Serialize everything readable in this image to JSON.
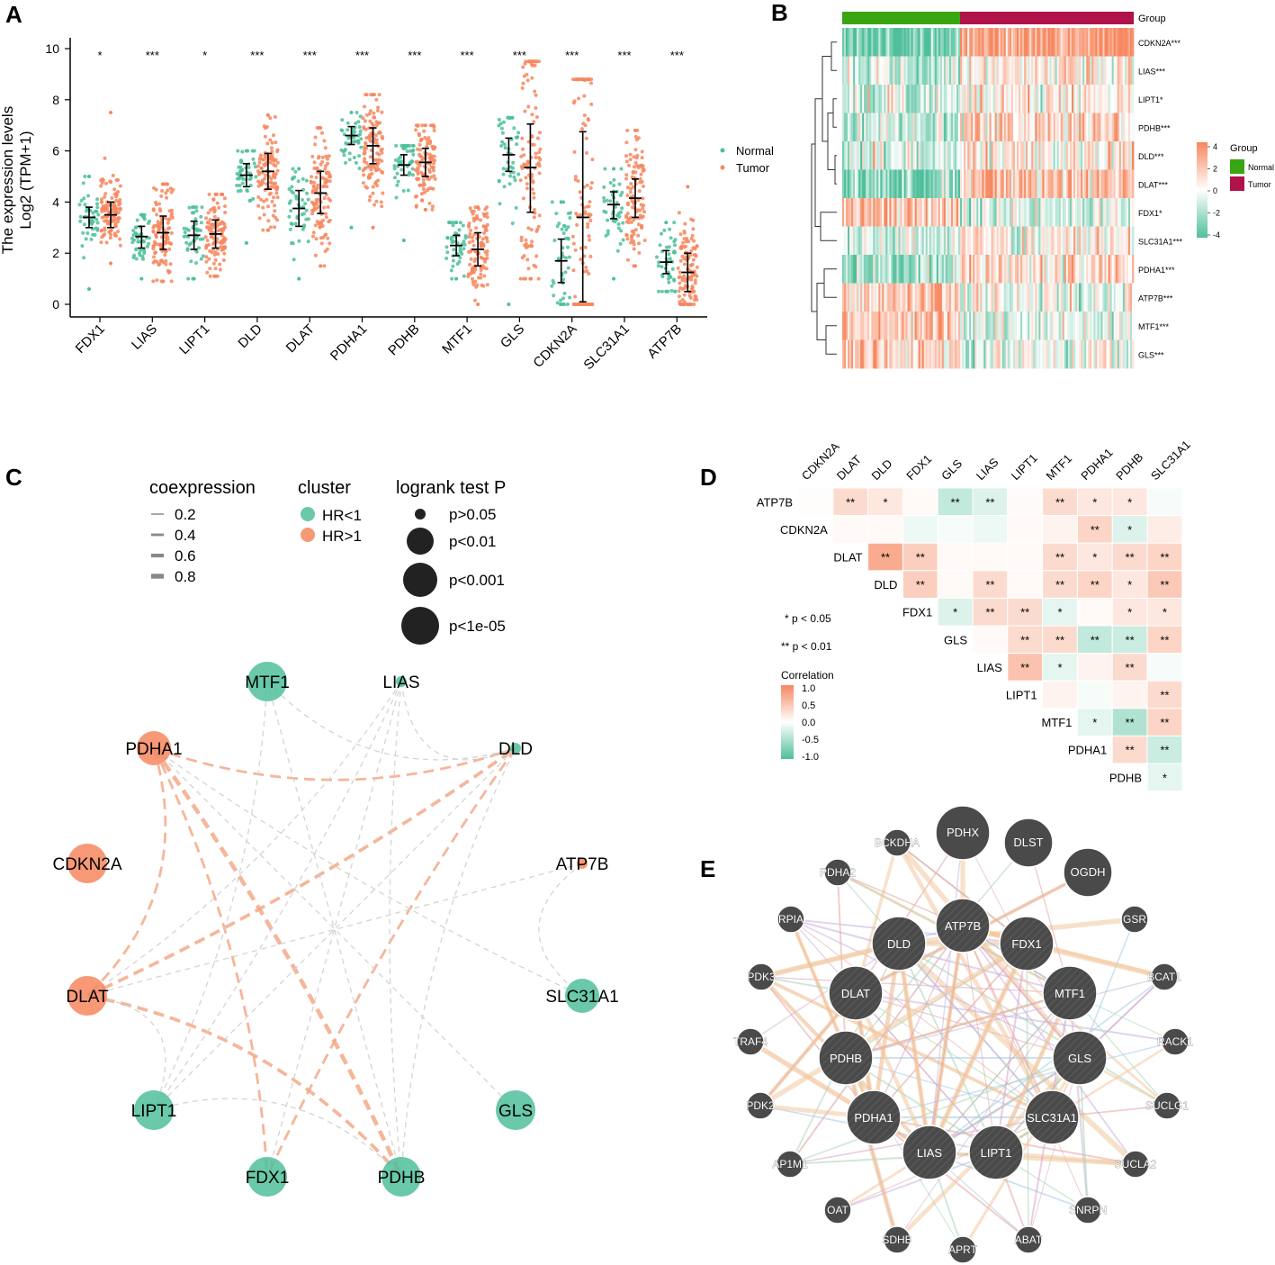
{
  "colors": {
    "normal": "#4fbf9b",
    "tumor": "#f6875f",
    "normal_bar": "#3aa513",
    "tumor_bar": "#b0124a",
    "node_dark": "#4a4a4a"
  },
  "chart_data": [
    {
      "panel": "A",
      "type": "scatter",
      "ylabel_main": "The expression levels",
      "ylabel_sub": "Log2 (TPM+1)",
      "ylim": [
        0,
        10
      ],
      "yticks": [
        "0",
        "2",
        "4",
        "6",
        "8",
        "10"
      ],
      "legend": [
        "Normal",
        "Tumor"
      ],
      "categories": [
        "FDX1",
        "LIAS",
        "LIPT1",
        "DLD",
        "DLAT",
        "PDHA1",
        "PDHB",
        "MTF1",
        "GLS",
        "CDKN2A",
        "SLC31A1",
        "ATP7B"
      ],
      "significance": [
        "*",
        "***",
        "*",
        "***",
        "***",
        "***",
        "***",
        "***",
        "***",
        "***",
        "***",
        "***"
      ],
      "series": [
        {
          "name": "Normal",
          "median": [
            3.4,
            2.65,
            2.7,
            5.05,
            3.75,
            6.6,
            5.45,
            2.3,
            5.85,
            1.7,
            3.9,
            1.65
          ],
          "q1": [
            3.0,
            2.2,
            2.15,
            4.6,
            3.05,
            6.25,
            5.05,
            1.9,
            5.2,
            0.85,
            3.35,
            1.2
          ],
          "q3": [
            3.8,
            3.05,
            3.25,
            5.5,
            4.45,
            6.95,
            5.85,
            2.7,
            6.5,
            2.55,
            4.4,
            2.1
          ],
          "min": [
            0.6,
            1.0,
            1.0,
            2.4,
            1.0,
            3.0,
            2.5,
            1.0,
            0.0,
            0.0,
            1.0,
            0.5
          ],
          "max": [
            5.0,
            3.5,
            3.8,
            6.0,
            5.3,
            7.5,
            6.2,
            3.2,
            7.3,
            4.0,
            5.3,
            3.2
          ]
        },
        {
          "name": "Tumor",
          "median": [
            3.5,
            2.8,
            2.75,
            5.2,
            4.35,
            6.2,
            5.55,
            2.15,
            5.35,
            3.4,
            4.15,
            1.25
          ],
          "q1": [
            3.0,
            2.15,
            2.2,
            4.5,
            3.55,
            5.5,
            5.0,
            1.5,
            3.6,
            0.1,
            3.4,
            0.5
          ],
          "q3": [
            4.0,
            3.45,
            3.3,
            5.9,
            5.2,
            6.9,
            6.1,
            2.8,
            7.05,
            6.75,
            4.9,
            2.0
          ],
          "min": [
            1.6,
            0.9,
            1.1,
            2.9,
            1.5,
            3.0,
            3.7,
            0.0,
            1.0,
            0.0,
            1.5,
            0.0
          ],
          "max": [
            7.5,
            4.7,
            4.3,
            7.4,
            6.9,
            8.2,
            7.0,
            3.8,
            9.5,
            8.8,
            6.8,
            4.6
          ]
        }
      ]
    },
    {
      "panel": "B",
      "type": "heatmap",
      "rows": [
        "CDKN2A***",
        "LIAS***",
        "LIPT1*",
        "PDHB***",
        "DLD***",
        "DLAT***",
        "FDX1*",
        "SLC31A1***",
        "PDHA1***",
        "ATP7B***",
        "MTF1***",
        "GLS***"
      ],
      "group_label": "Group",
      "groups": [
        "Normal",
        "Tumor"
      ],
      "colorbar": {
        "title": "Group",
        "ticks": [
          "4",
          "2",
          "0",
          "-2",
          "-4"
        ],
        "range": [
          -4,
          4
        ]
      },
      "normal_bias": [
        -0.9,
        -0.2,
        -0.2,
        -0.3,
        -0.2,
        -0.7,
        0.5,
        -0.2,
        -0.6,
        0.4,
        0.4,
        0.4
      ],
      "tumor_bias": [
        0.8,
        0.2,
        0.2,
        0.3,
        0.2,
        0.5,
        -0.2,
        0.1,
        0.3,
        -0.1,
        -0.2,
        -0.1
      ]
    },
    {
      "panel": "C",
      "type": "network",
      "legend_titles": {
        "coexpression": "coexpression",
        "cluster": "cluster",
        "logrank": "logrank test P"
      },
      "coexpression_values": [
        "0.2",
        "0.4",
        "0.6",
        "0.8"
      ],
      "cluster": [
        {
          "label": "HR<1",
          "color": "#4fbf9b"
        },
        {
          "label": "HR>1",
          "color": "#f6875f"
        }
      ],
      "logrank": [
        "p>0.05",
        "p<0.01",
        "p<0.001",
        "p<1e-05"
      ],
      "nodes": [
        {
          "name": "MTF1",
          "cluster": "HR<1",
          "p": "p<0.001"
        },
        {
          "name": "LIAS",
          "cluster": "HR<1",
          "p": "p>0.05"
        },
        {
          "name": "DLD",
          "cluster": "HR<1",
          "p": "p>0.05"
        },
        {
          "name": "ATP7B",
          "cluster": "HR>1",
          "p": "p>0.05"
        },
        {
          "name": "SLC31A1",
          "cluster": "HR<1",
          "p": "p<0.01"
        },
        {
          "name": "GLS",
          "cluster": "HR<1",
          "p": "p<0.001"
        },
        {
          "name": "PDHB",
          "cluster": "HR<1",
          "p": "p<0.001"
        },
        {
          "name": "FDX1",
          "cluster": "HR<1",
          "p": "p<0.001"
        },
        {
          "name": "LIPT1",
          "cluster": "HR<1",
          "p": "p<0.001"
        },
        {
          "name": "DLAT",
          "cluster": "HR>1",
          "p": "p<0.001"
        },
        {
          "name": "CDKN2A",
          "cluster": "HR>1",
          "p": "p<0.001"
        },
        {
          "name": "PDHA1",
          "cluster": "HR>1",
          "p": "p<0.01"
        }
      ],
      "edges": [
        [
          "PDHA1",
          "PDHB",
          0.8,
          "pos"
        ],
        [
          "DLAT",
          "PDHB",
          0.6,
          "pos"
        ],
        [
          "PDHA1",
          "DLD",
          0.4,
          "pos"
        ],
        [
          "DLAT",
          "DLD",
          0.6,
          "pos"
        ],
        [
          "PDHA1",
          "DLAT",
          0.4,
          "pos"
        ],
        [
          "DLD",
          "FDX1",
          0.4,
          "pos"
        ],
        [
          "PDHA1",
          "FDX1",
          0.4,
          "pos"
        ],
        [
          "DLAT",
          "LIPT1",
          0.2,
          "neg"
        ],
        [
          "MTF1",
          "PDHB",
          0.2,
          "neg"
        ],
        [
          "MTF1",
          "DLD",
          0.2,
          "neg"
        ],
        [
          "LIAS",
          "LIPT1",
          0.2,
          "neg"
        ],
        [
          "LIAS",
          "PDHB",
          0.2,
          "neg"
        ],
        [
          "LIAS",
          "FDX1",
          0.2,
          "neg"
        ],
        [
          "LIAS",
          "DLAT",
          0.2,
          "neg"
        ],
        [
          "LIAS",
          "DLD",
          0.2,
          "neg"
        ],
        [
          "ATP7B",
          "SLC31A1",
          0.2,
          "neg"
        ],
        [
          "ATP7B",
          "DLAT",
          0.2,
          "neg"
        ],
        [
          "PDHA1",
          "SLC31A1",
          0.2,
          "neg"
        ],
        [
          "GLS",
          "PDHA1",
          0.2,
          "neg"
        ],
        [
          "LIPT1",
          "PDHB",
          0.2,
          "neg"
        ],
        [
          "LIPT1",
          "DLD",
          0.2,
          "neg"
        ],
        [
          "MTF1",
          "LIPT1",
          0.2,
          "neg"
        ],
        [
          "PDHB",
          "DLD",
          0.2,
          "neg"
        ]
      ]
    },
    {
      "panel": "D",
      "type": "heatmap",
      "columns": [
        "CDKN2A",
        "DLAT",
        "DLD",
        "FDX1",
        "GLS",
        "LIAS",
        "LIPT1",
        "MTF1",
        "PDHA1",
        "PDHB",
        "SLC31A1"
      ],
      "rows": [
        "ATP7B",
        "CDKN2A",
        "DLAT",
        "DLD",
        "FDX1",
        "GLS",
        "LIAS",
        "LIPT1",
        "MTF1",
        "PDHA1",
        "PDHB"
      ],
      "values": [
        [
          0.02,
          0.3,
          0.2,
          0.05,
          -0.35,
          -0.2,
          0.03,
          0.3,
          0.2,
          0.2,
          -0.05
        ],
        [
          null,
          0.05,
          0.05,
          -0.1,
          -0.05,
          -0.1,
          0.05,
          0.1,
          0.35,
          -0.2,
          0.15
        ],
        [
          null,
          null,
          0.7,
          0.4,
          0.05,
          0.05,
          0.05,
          0.3,
          0.2,
          0.3,
          0.35
        ],
        [
          null,
          null,
          null,
          0.4,
          0.05,
          0.3,
          0.05,
          0.3,
          0.35,
          0.2,
          0.45
        ],
        [
          null,
          null,
          null,
          null,
          -0.2,
          0.3,
          0.3,
          -0.15,
          0.05,
          0.2,
          0.2
        ],
        [
          null,
          null,
          null,
          null,
          null,
          0.05,
          0.3,
          0.3,
          -0.35,
          -0.3,
          0.35
        ],
        [
          null,
          null,
          null,
          null,
          null,
          null,
          0.5,
          -0.15,
          0.1,
          0.3,
          -0.05
        ],
        [
          null,
          null,
          null,
          null,
          null,
          null,
          null,
          0.1,
          -0.05,
          0.1,
          0.3
        ],
        [
          null,
          null,
          null,
          null,
          null,
          null,
          null,
          null,
          -0.15,
          -0.45,
          0.35
        ],
        [
          null,
          null,
          null,
          null,
          null,
          null,
          null,
          null,
          null,
          0.3,
          -0.3
        ],
        [
          null,
          null,
          null,
          null,
          null,
          null,
          null,
          null,
          null,
          null,
          -0.15
        ]
      ],
      "stars": [
        [
          "",
          "**",
          "*",
          "",
          "**",
          "**",
          "",
          "**",
          "*",
          "*",
          ""
        ],
        [
          null,
          "",
          "",
          "",
          "",
          "",
          "",
          "",
          "**",
          "*",
          ""
        ],
        [
          null,
          null,
          "**",
          "**",
          "",
          "",
          "",
          "**",
          "*",
          "**",
          "**"
        ],
        [
          null,
          null,
          null,
          "**",
          "",
          "**",
          "",
          "**",
          "**",
          "*",
          "**"
        ],
        [
          null,
          null,
          null,
          null,
          "*",
          "**",
          "**",
          "*",
          "",
          "*",
          "*"
        ],
        [
          null,
          null,
          null,
          null,
          null,
          "",
          "**",
          "**",
          "**",
          "**",
          "**"
        ],
        [
          null,
          null,
          null,
          null,
          null,
          null,
          "**",
          "*",
          "",
          "**",
          ""
        ],
        [
          null,
          null,
          null,
          null,
          null,
          null,
          null,
          "",
          "",
          "",
          "**"
        ],
        [
          null,
          null,
          null,
          null,
          null,
          null,
          null,
          null,
          "*",
          "**",
          "**"
        ],
        [
          null,
          null,
          null,
          null,
          null,
          null,
          null,
          null,
          null,
          "**",
          "**"
        ],
        [
          null,
          null,
          null,
          null,
          null,
          null,
          null,
          null,
          null,
          null,
          "*"
        ]
      ],
      "sig_legend": [
        "* p < 0.05",
        "** p < 0.01"
      ],
      "colorbar": {
        "title": "Correlation",
        "ticks": [
          "1.0",
          "0.5",
          "0.0",
          "-0.5",
          "-1.0"
        ],
        "range": [
          -1,
          1
        ]
      }
    },
    {
      "panel": "E",
      "type": "network",
      "inner_nodes": [
        {
          "name": "ATP7B",
          "size": "large"
        },
        {
          "name": "FDX1",
          "size": "large"
        },
        {
          "name": "MTF1",
          "size": "large"
        },
        {
          "name": "GLS",
          "size": "large"
        },
        {
          "name": "SLC31A1",
          "size": "large"
        },
        {
          "name": "LIPT1",
          "size": "large"
        },
        {
          "name": "LIAS",
          "size": "large"
        },
        {
          "name": "PDHA1",
          "size": "large"
        },
        {
          "name": "PDHB",
          "size": "large"
        },
        {
          "name": "DLAT",
          "size": "large"
        },
        {
          "name": "DLD",
          "size": "large"
        }
      ],
      "outer_nodes": [
        {
          "name": "PDHX",
          "size": "large"
        },
        {
          "name": "DLST",
          "size": "medium"
        },
        {
          "name": "OGDH",
          "size": "medium"
        },
        {
          "name": "GSR",
          "size": "small"
        },
        {
          "name": "BCAT1",
          "size": "small"
        },
        {
          "name": "RACK1",
          "size": "small"
        },
        {
          "name": "SUCLG1",
          "size": "small"
        },
        {
          "name": "SUCLA2",
          "size": "small"
        },
        {
          "name": "SNRPN",
          "size": "small"
        },
        {
          "name": "ABAT",
          "size": "small"
        },
        {
          "name": "APRT",
          "size": "small"
        },
        {
          "name": "SDHB",
          "size": "small"
        },
        {
          "name": "OAT",
          "size": "small"
        },
        {
          "name": "AP1M1",
          "size": "small"
        },
        {
          "name": "PDK2",
          "size": "small"
        },
        {
          "name": "TRAF4",
          "size": "small"
        },
        {
          "name": "PDK3",
          "size": "small"
        },
        {
          "name": "RPIA",
          "size": "small"
        },
        {
          "name": "PDHA2",
          "size": "small"
        },
        {
          "name": "BCKDHA",
          "size": "small"
        }
      ]
    }
  ],
  "panel_labels": [
    "A",
    "B",
    "C",
    "D",
    "E"
  ]
}
